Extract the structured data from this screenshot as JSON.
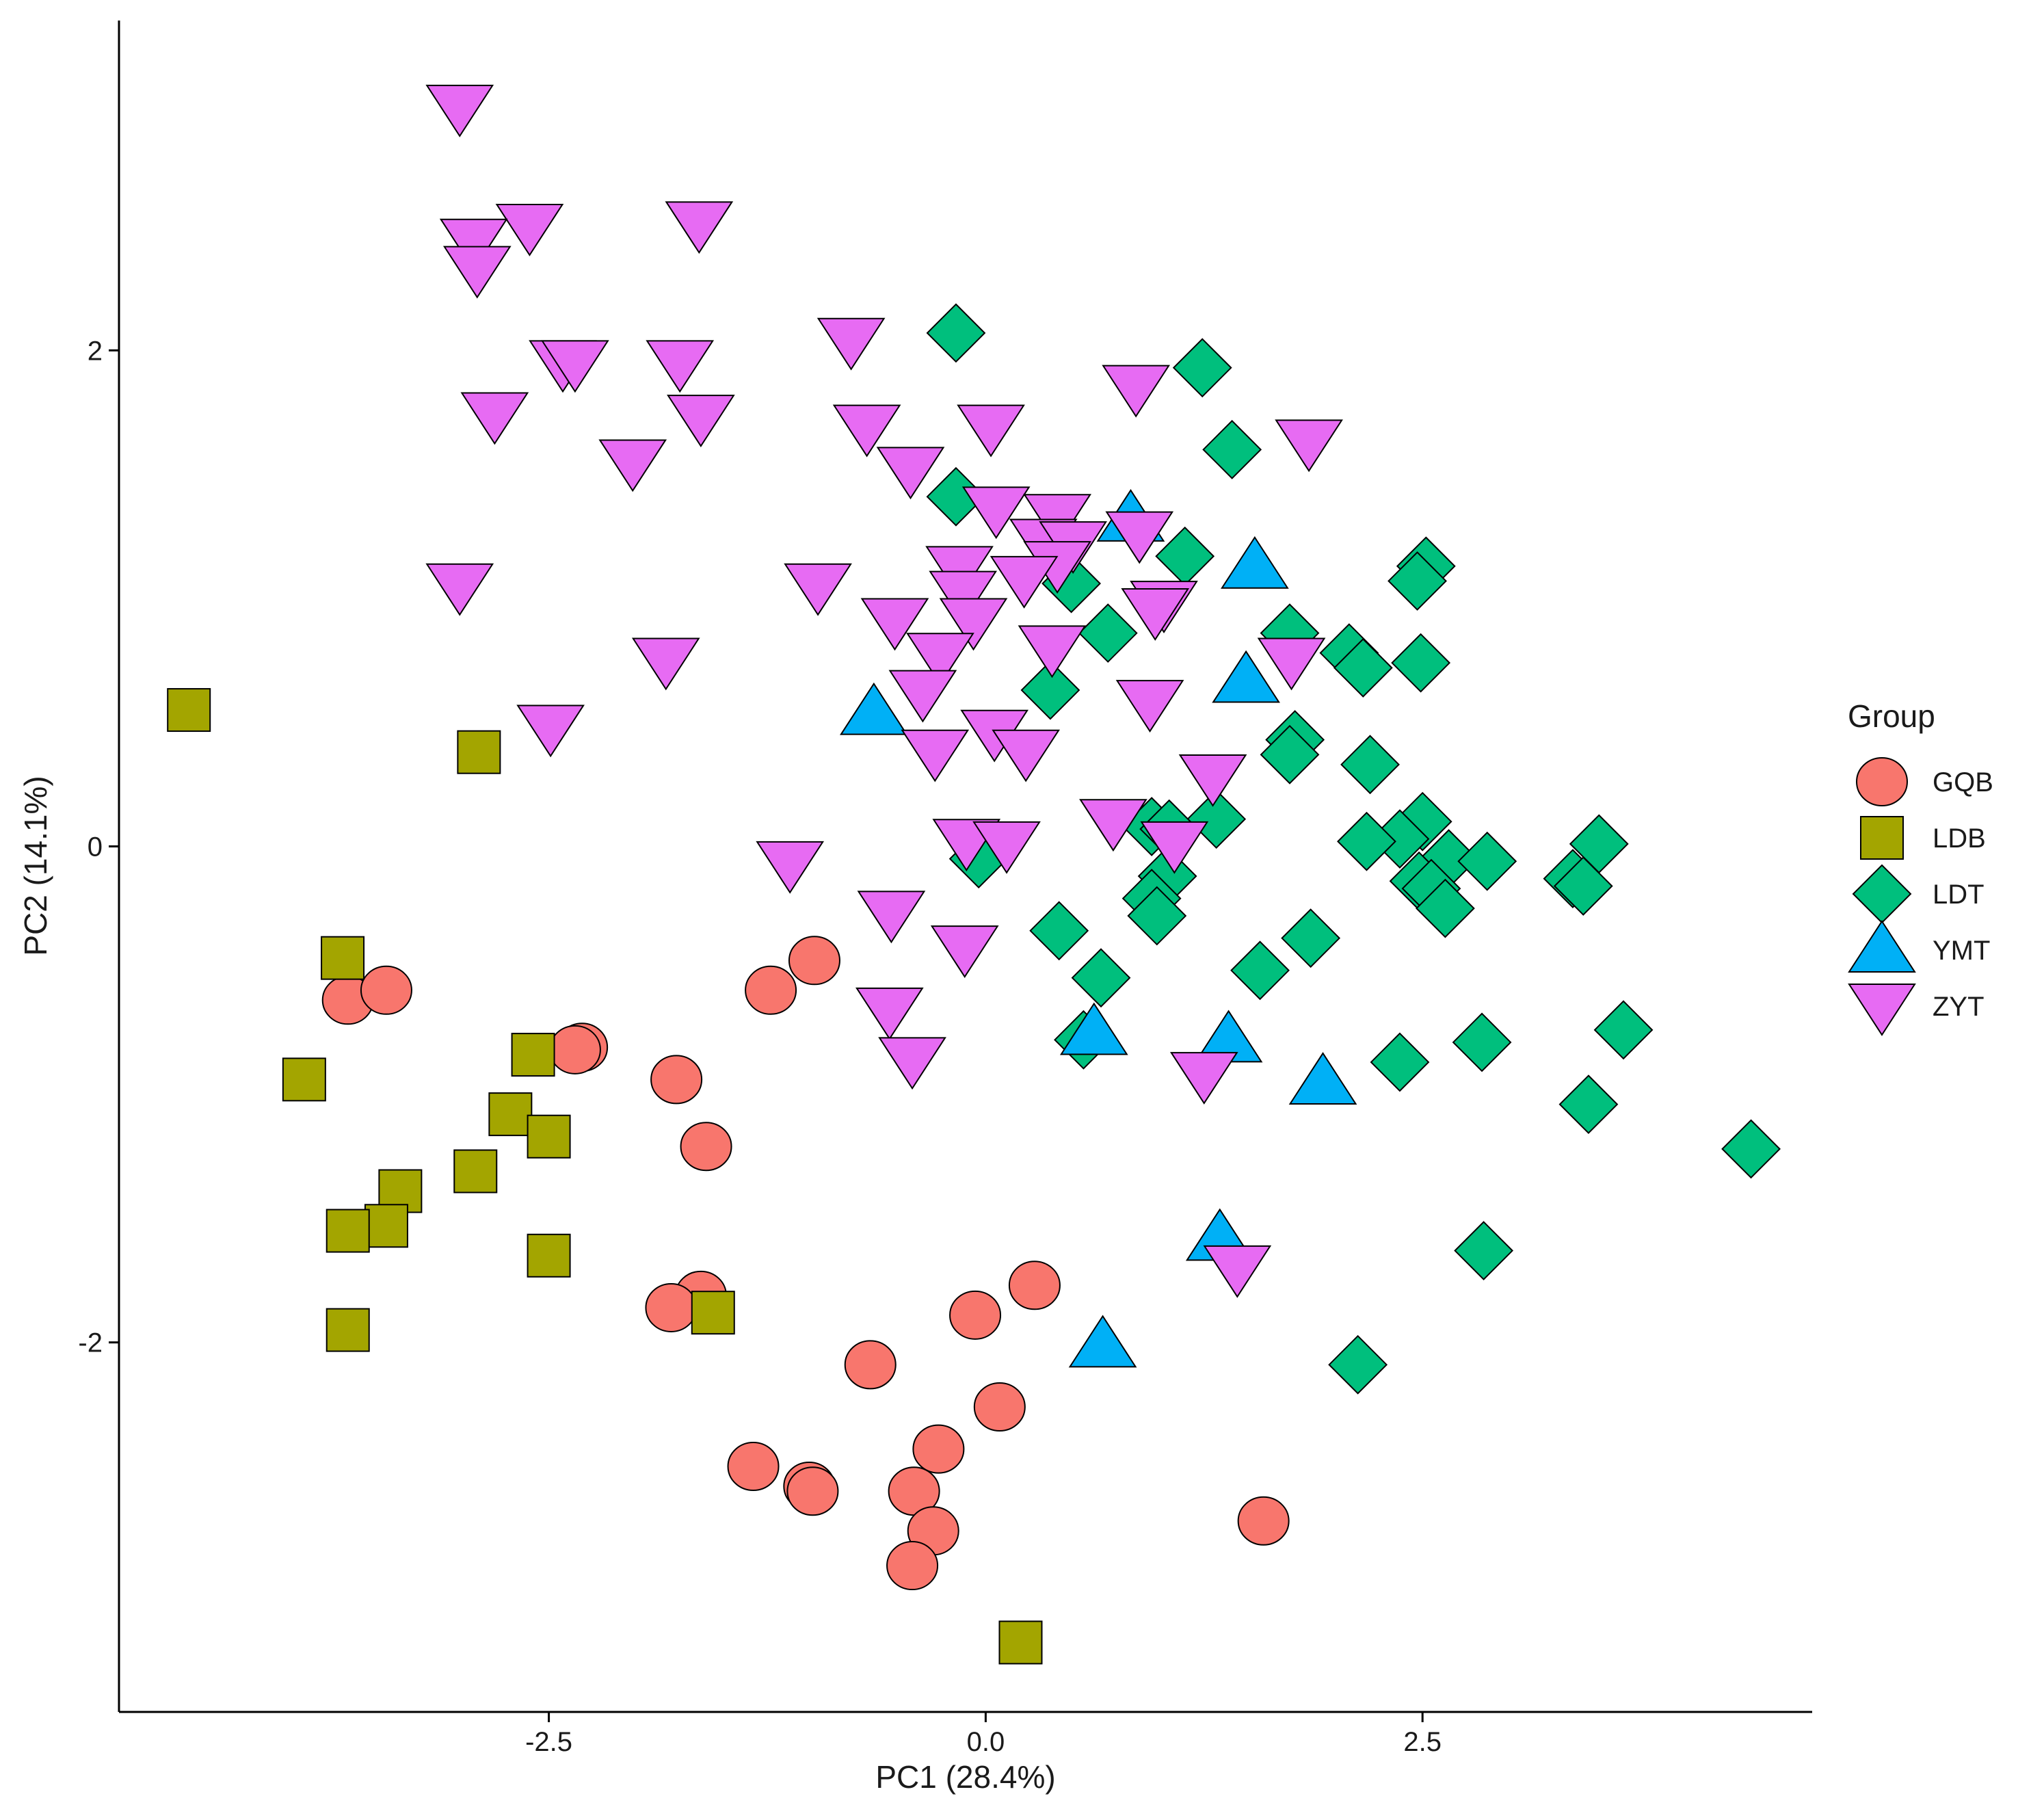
{
  "chart_data": {
    "type": "scatter",
    "title": "",
    "xlabel": "PC1 (28.4%)",
    "ylabel": "PC2 (14.1%)",
    "xlim": [
      -4.96,
      4.73
    ],
    "ylim": [
      -3.49,
      3.33
    ],
    "xticks": [
      -2.5,
      0.0,
      2.5
    ],
    "xtick_labels": [
      "-2.5",
      "0.0",
      "2.5"
    ],
    "yticks": [
      -2,
      0,
      2
    ],
    "ytick_labels": [
      "-2",
      "0",
      "2"
    ],
    "grid": false,
    "legend": {
      "title": "Group",
      "position": "right"
    },
    "series": [
      {
        "name": "GQB",
        "shape": "circle",
        "color": "#F8766D",
        "points": [
          [
            -3.65,
            -0.62
          ],
          [
            -3.43,
            -0.58
          ],
          [
            -2.31,
            -0.81
          ],
          [
            -2.35,
            -0.82
          ],
          [
            -1.77,
            -0.94
          ],
          [
            -1.6,
            -1.21
          ],
          [
            -1.23,
            -0.58
          ],
          [
            -0.98,
            -0.46
          ],
          [
            -1.63,
            -1.81
          ],
          [
            -1.8,
            -1.86
          ],
          [
            -0.66,
            -2.09
          ],
          [
            0.28,
            -1.77
          ],
          [
            -0.06,
            -1.89
          ],
          [
            0.08,
            -2.26
          ],
          [
            -0.27,
            -2.43
          ],
          [
            -1.33,
            -2.5
          ],
          [
            -1.01,
            -2.58
          ],
          [
            -0.99,
            -2.6
          ],
          [
            -0.41,
            -2.6
          ],
          [
            -0.3,
            -2.76
          ],
          [
            -0.42,
            -2.9
          ],
          [
            1.59,
            -2.72
          ]
        ]
      },
      {
        "name": "LDB",
        "shape": "square",
        "color": "#A3A500",
        "points": [
          [
            -4.56,
            0.55
          ],
          [
            -2.9,
            0.38
          ],
          [
            -3.68,
            -0.45
          ],
          [
            -3.9,
            -0.94
          ],
          [
            -2.59,
            -0.84
          ],
          [
            -2.72,
            -1.08
          ],
          [
            -2.5,
            -1.17
          ],
          [
            -2.92,
            -1.31
          ],
          [
            -3.35,
            -1.39
          ],
          [
            -3.43,
            -1.53
          ],
          [
            -3.65,
            -1.55
          ],
          [
            -2.5,
            -1.65
          ],
          [
            -3.65,
            -1.95
          ],
          [
            -1.56,
            -1.88
          ],
          [
            0.2,
            -3.21
          ]
        ]
      },
      {
        "name": "LDT",
        "shape": "diamond",
        "color": "#00BF7D",
        "points": [
          [
            -0.17,
            2.07
          ],
          [
            1.24,
            1.93
          ],
          [
            1.41,
            1.6
          ],
          [
            -0.17,
            1.41
          ],
          [
            1.14,
            1.17
          ],
          [
            2.52,
            1.13
          ],
          [
            2.47,
            1.07
          ],
          [
            0.49,
            1.06
          ],
          [
            0.7,
            0.86
          ],
          [
            1.74,
            0.86
          ],
          [
            2.08,
            0.78
          ],
          [
            2.16,
            0.72
          ],
          [
            2.49,
            0.74
          ],
          [
            0.37,
            0.63
          ],
          [
            1.77,
            0.43
          ],
          [
            1.74,
            0.37
          ],
          [
            2.2,
            0.33
          ],
          [
            2.5,
            0.1
          ],
          [
            2.37,
            0.03
          ],
          [
            2.18,
            0.02
          ],
          [
            1.32,
            0.11
          ],
          [
            0.95,
            0.08
          ],
          [
            1.05,
            0.07
          ],
          [
            2.65,
            -0.05
          ],
          [
            2.87,
            -0.06
          ],
          [
            3.51,
            0.01
          ],
          [
            3.36,
            -0.13
          ],
          [
            3.42,
            -0.16
          ],
          [
            2.48,
            -0.14
          ],
          [
            2.55,
            -0.17
          ],
          [
            2.63,
            -0.25
          ],
          [
            -0.04,
            -0.05
          ],
          [
            1.04,
            -0.12
          ],
          [
            0.95,
            -0.21
          ],
          [
            0.98,
            -0.28
          ],
          [
            0.42,
            -0.34
          ],
          [
            1.86,
            -0.37
          ],
          [
            0.66,
            -0.53
          ],
          [
            1.57,
            -0.5
          ],
          [
            0.56,
            -0.78
          ],
          [
            2.37,
            -0.87
          ],
          [
            2.84,
            -0.79
          ],
          [
            3.65,
            -0.74
          ],
          [
            3.45,
            -1.04
          ],
          [
            4.38,
            -1.22
          ],
          [
            2.85,
            -1.63
          ],
          [
            2.13,
            -2.09
          ]
        ]
      },
      {
        "name": "YMT",
        "shape": "triangle-up",
        "color": "#00B0F6",
        "points": [
          [
            0.83,
            1.32
          ],
          [
            1.54,
            1.13
          ],
          [
            1.49,
            0.67
          ],
          [
            -0.64,
            0.54
          ],
          [
            0.62,
            -0.75
          ],
          [
            1.39,
            -0.78
          ],
          [
            1.93,
            -0.95
          ],
          [
            1.34,
            -1.58
          ],
          [
            0.67,
            -2.01
          ]
        ]
      },
      {
        "name": "ZYT",
        "shape": "triangle-down",
        "color": "#E76BF3",
        "points": [
          [
            -3.01,
            2.98
          ],
          [
            -2.61,
            2.5
          ],
          [
            -2.93,
            2.44
          ],
          [
            -1.64,
            2.51
          ],
          [
            -2.91,
            2.33
          ],
          [
            -2.42,
            1.95
          ],
          [
            -2.35,
            1.95
          ],
          [
            -1.75,
            1.95
          ],
          [
            -2.81,
            1.74
          ],
          [
            -1.63,
            1.73
          ],
          [
            -2.02,
            1.55
          ],
          [
            -0.77,
            2.04
          ],
          [
            0.86,
            1.85
          ],
          [
            1.85,
            1.63
          ],
          [
            -0.68,
            1.69
          ],
          [
            0.03,
            1.69
          ],
          [
            -0.43,
            1.52
          ],
          [
            -0.15,
            1.12
          ],
          [
            0.06,
            1.36
          ],
          [
            0.41,
            1.33
          ],
          [
            0.33,
            1.23
          ],
          [
            0.5,
            1.22
          ],
          [
            0.88,
            1.26
          ],
          [
            0.41,
            1.14
          ],
          [
            0.22,
            1.08
          ],
          [
            -0.13,
            1.02
          ],
          [
            -0.07,
            0.91
          ],
          [
            1.02,
            0.98
          ],
          [
            0.97,
            0.95
          ],
          [
            -0.52,
            0.91
          ],
          [
            -0.26,
            0.77
          ],
          [
            0.38,
            0.8
          ],
          [
            0.94,
            0.58
          ],
          [
            1.75,
            0.75
          ],
          [
            -0.36,
            0.62
          ],
          [
            -2.49,
            0.48
          ],
          [
            -3.01,
            1.05
          ],
          [
            -1.83,
            0.75
          ],
          [
            -0.96,
            1.05
          ],
          [
            0.05,
            0.46
          ],
          [
            0.23,
            0.38
          ],
          [
            -0.29,
            0.38
          ],
          [
            1.3,
            0.28
          ],
          [
            0.73,
            0.1
          ],
          [
            -0.11,
            0.02
          ],
          [
            0.12,
            0.01
          ],
          [
            1.08,
            0.01
          ],
          [
            -1.12,
            -0.07
          ],
          [
            -0.54,
            -0.27
          ],
          [
            -0.12,
            -0.41
          ],
          [
            -0.55,
            -0.66
          ],
          [
            -0.42,
            -0.86
          ],
          [
            1.25,
            -0.92
          ],
          [
            1.44,
            -1.7
          ]
        ]
      }
    ]
  }
}
